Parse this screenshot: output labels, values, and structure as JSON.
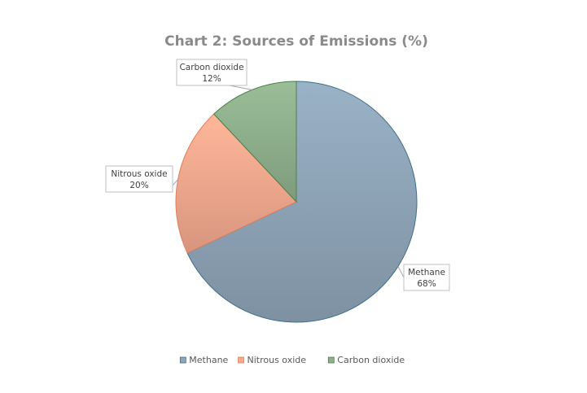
{
  "chart_data": {
    "type": "pie",
    "title": "Chart 2: Sources of Emissions (%)",
    "categories": [
      "Methane",
      "Nitrous oxide",
      "Carbon dioxide"
    ],
    "values": [
      68,
      20,
      12
    ],
    "data_labels": [
      "68%",
      "20%",
      "12%"
    ],
    "colors": [
      "#8fa5b8",
      "#f5a98f",
      "#8fb08d"
    ],
    "edge_colors": [
      "#3f6f8a",
      "#e07f5b",
      "#4f7f4a"
    ],
    "legend_position": "bottom"
  }
}
